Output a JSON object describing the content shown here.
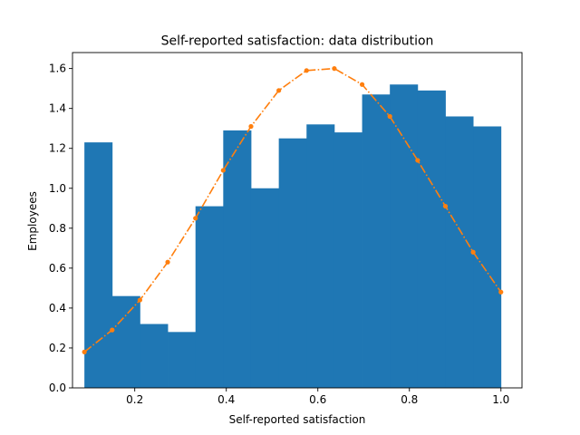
{
  "chart_data": {
    "type": "bar",
    "title": "Self-reported satisfaction: data distribution",
    "xlabel": "Self-reported satisfaction",
    "ylabel": "Employees",
    "xlim": [
      0.064,
      1.046
    ],
    "ylim": [
      0,
      1.68
    ],
    "grid": false,
    "xticks": [
      0.2,
      0.4,
      0.6,
      0.8,
      1.0
    ],
    "xtick_labels": [
      "0.2",
      "0.4",
      "0.6",
      "0.8",
      "1.0"
    ],
    "yticks": [
      0.0,
      0.2,
      0.4,
      0.6,
      0.8,
      1.0,
      1.2,
      1.4,
      1.6
    ],
    "ytick_labels": [
      "0.0",
      "0.2",
      "0.4",
      "0.6",
      "0.8",
      "1.0",
      "1.2",
      "1.4",
      "1.6"
    ],
    "histogram": {
      "bin_edges": [
        0.09,
        0.1507,
        0.2113,
        0.272,
        0.3327,
        0.3933,
        0.454,
        0.5147,
        0.5753,
        0.636,
        0.6967,
        0.7573,
        0.818,
        0.8787,
        0.9393,
        1.0
      ],
      "values": [
        1.23,
        0.46,
        0.32,
        0.28,
        0.91,
        1.29,
        1.0,
        1.25,
        1.32,
        1.28,
        1.47,
        1.52,
        1.49,
        1.36,
        1.31
      ],
      "color": "#1f77b4"
    },
    "curve": {
      "x": [
        0.09,
        0.1507,
        0.2113,
        0.272,
        0.3327,
        0.3933,
        0.454,
        0.5147,
        0.5753,
        0.636,
        0.6967,
        0.7573,
        0.818,
        0.8787,
        0.9393,
        1.0
      ],
      "y": [
        0.18,
        0.29,
        0.44,
        0.63,
        0.85,
        1.09,
        1.31,
        1.49,
        1.59,
        1.6,
        1.52,
        1.36,
        1.14,
        0.91,
        0.68,
        0.48
      ],
      "color": "#ff7f0e",
      "linestyle": "dash-dot",
      "marker": "circle"
    }
  }
}
